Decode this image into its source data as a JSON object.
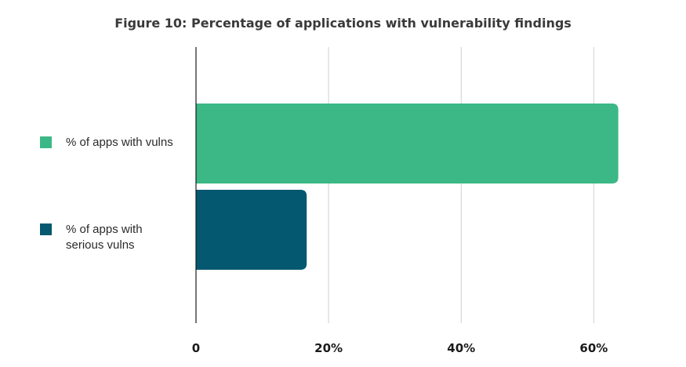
{
  "chart_data": {
    "type": "bar",
    "orientation": "horizontal",
    "title": "Figure 10: Percentage of applications with vulnerability findings",
    "xlabel": "",
    "ylabel": "",
    "xlim": [
      0,
      68
    ],
    "xticks": [
      0,
      20,
      40,
      60
    ],
    "xtick_labels": [
      "0",
      "20%",
      "40%",
      "60%"
    ],
    "grid": "vertical",
    "legend_position": "left",
    "series": [
      {
        "name": "% of apps with vulns",
        "name_lines": [
          "% of apps with vulns"
        ],
        "value": 63.7,
        "color": "#3bb886"
      },
      {
        "name": "% of apps with serious vulns",
        "name_lines": [
          "% of apps with",
          "serious vulns"
        ],
        "value": 16.7,
        "color": "#04586f"
      }
    ]
  }
}
